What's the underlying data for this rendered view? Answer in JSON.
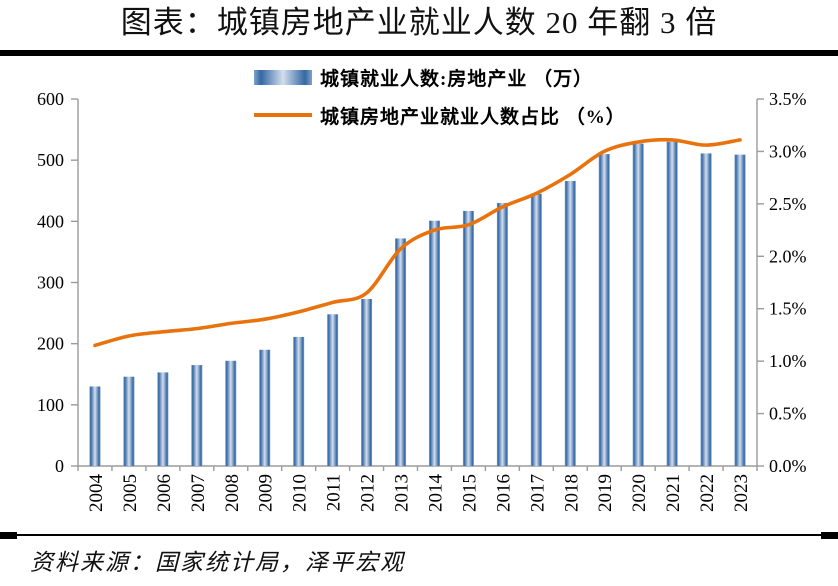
{
  "title": "图表：城镇房地产业就业人数 20 年翻 3 倍",
  "source": "资料来源：国家统计局，泽平宏观",
  "legend": {
    "bars": "城镇就业人数:房地产业 （万）",
    "line": "城镇房地产业就业人数占比 （%）"
  },
  "colors": {
    "bar_edge": "#7FA3C9",
    "bar_dark": "#3467A4",
    "bar_light": "#D3DEED",
    "line": "#E8720C",
    "axis": "#9B9B9B",
    "text": "#000000",
    "rule": "#000000"
  },
  "chart_data": {
    "type": "bar",
    "title": "图表：城镇房地产业就业人数 20 年翻 3 倍",
    "categories": [
      "2004",
      "2005",
      "2006",
      "2007",
      "2008",
      "2009",
      "2010",
      "2011",
      "2012",
      "2013",
      "2014",
      "2015",
      "2016",
      "2017",
      "2018",
      "2019",
      "2020",
      "2021",
      "2022",
      "2023"
    ],
    "series": [
      {
        "name": "城镇就业人数:房地产业 （万）",
        "type": "bar",
        "axis": "left",
        "values": [
          130,
          146,
          153,
          165,
          172,
          190,
          211,
          248,
          273,
          372,
          401,
          417,
          430,
          445,
          466,
          510,
          527,
          530,
          511,
          509
        ]
      },
      {
        "name": "城镇房地产业就业人数占比 （%）",
        "type": "line",
        "axis": "right",
        "values": [
          1.15,
          1.24,
          1.28,
          1.31,
          1.36,
          1.4,
          1.47,
          1.56,
          1.65,
          2.07,
          2.25,
          2.3,
          2.47,
          2.6,
          2.78,
          3.0,
          3.09,
          3.11,
          3.06,
          3.11
        ]
      }
    ],
    "left_axis": {
      "min": 0,
      "max": 600,
      "step": 100,
      "ticks": [
        "0",
        "100",
        "200",
        "300",
        "400",
        "500",
        "600"
      ]
    },
    "right_axis": {
      "min": 0,
      "max": 3.5,
      "step": 0.5,
      "ticks": [
        "0.0%",
        "0.5%",
        "1.0%",
        "1.5%",
        "2.0%",
        "2.5%",
        "3.0%",
        "3.5%"
      ]
    },
    "xlabel": "",
    "ylabel": "",
    "grid": false,
    "legend_position": "top-center"
  }
}
